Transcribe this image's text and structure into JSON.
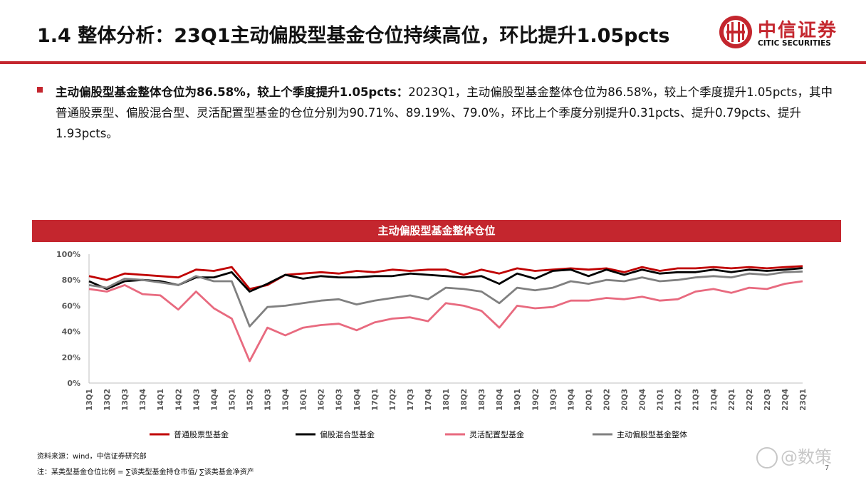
{
  "header": {
    "title": "1.4 整体分析：23Q1主动偏股型基金仓位持续高位，环比提升1.05pcts",
    "logo_cn": "中信证券",
    "logo_en": "CITIC SECURITIES",
    "accent_color": "#c4262e"
  },
  "summary": {
    "bold_text": "主动偏股型基金整体仓位为86.58%，较上个季度提升1.05pcts：",
    "body_text": "2023Q1，主动偏股型基金整体仓位为86.58%，较上个季度提升1.05pcts，其中普通股票型、偏股混合型、灵活配置型基金的仓位分别为90.71%、89.19%、79.0%，环比上个季度分别提升0.31pcts、提升0.79pcts、提升1.93pcts。"
  },
  "chart_header": "主动偏股型基金整体仓位",
  "chart_data": {
    "type": "line",
    "x": [
      "13Q1",
      "13Q2",
      "13Q3",
      "13Q4",
      "14Q1",
      "14Q2",
      "14Q3",
      "14Q4",
      "15Q1",
      "15Q2",
      "15Q3",
      "15Q4",
      "16Q1",
      "16Q2",
      "16Q3",
      "16Q4",
      "17Q1",
      "17Q2",
      "17Q3",
      "17Q4",
      "18Q1",
      "18Q2",
      "18Q3",
      "18Q4",
      "19Q1",
      "19Q2",
      "19Q3",
      "19Q4",
      "20Q1",
      "20Q2",
      "20Q3",
      "20Q4",
      "21Q1",
      "21Q2",
      "21Q3",
      "21Q4",
      "22Q1",
      "22Q2",
      "22Q3",
      "22Q4",
      "23Q1"
    ],
    "x_tick_labels": [
      "13Q1",
      "13Q2",
      "13Q3",
      "13Q4",
      "14Q1",
      "14Q2",
      "14Q3",
      "14Q4",
      "15Q1",
      "15Q2",
      "15Q3",
      "15Q4",
      "16Q1",
      "16Q2",
      "16Q3",
      "16Q4",
      "17Q1",
      "17Q2",
      "17Q3",
      "17Q4",
      "18Q1",
      "18Q2",
      "18Q3",
      "18Q4",
      "19Q1",
      "19Q2",
      "19Q3",
      "19Q4",
      "20Q1",
      "20Q2",
      "20Q3",
      "20Q4",
      "21Q1",
      "21Q2",
      "21Q3",
      "21Q4",
      "22Q1",
      "22Q2",
      "22Q3",
      "22Q4",
      "23Q1"
    ],
    "y_tick_labels": [
      "0%",
      "20%",
      "40%",
      "60%",
      "80%",
      "100%"
    ],
    "ylim": [
      0,
      100
    ],
    "series": [
      {
        "name": "普通股票型基金",
        "color": "#c00000",
        "values": [
          83,
          80,
          85,
          84,
          83,
          82,
          88,
          87,
          90,
          73,
          76,
          84,
          85,
          86,
          85,
          87,
          86,
          88,
          87,
          88,
          88,
          84,
          88,
          85,
          89,
          87,
          88,
          89,
          88,
          89,
          86,
          90,
          87,
          89,
          89,
          90,
          89,
          90,
          89,
          90,
          90.71
        ]
      },
      {
        "name": "偏股混合型基金",
        "color": "#000000",
        "values": [
          79,
          73,
          79,
          80,
          79,
          76,
          82,
          82,
          86,
          71,
          77,
          84,
          81,
          83,
          82,
          82,
          83,
          83,
          85,
          84,
          83,
          82,
          83,
          77,
          85,
          81,
          87,
          88,
          83,
          88,
          84,
          88,
          85,
          86,
          86,
          88,
          86,
          88,
          87,
          88,
          89.19
        ]
      },
      {
        "name": "灵活配置型基金",
        "color": "#e86a7f",
        "values": [
          73,
          71,
          76,
          69,
          68,
          57,
          71,
          58,
          50,
          17,
          43,
          37,
          43,
          45,
          46,
          41,
          47,
          50,
          51,
          48,
          62,
          60,
          56,
          43,
          60,
          58,
          59,
          64,
          64,
          66,
          65,
          67,
          64,
          65,
          71,
          73,
          70,
          74,
          73,
          77,
          79.0
        ]
      },
      {
        "name": "主动偏股型基金整体",
        "color": "#808080",
        "values": [
          76,
          74,
          81,
          80,
          78,
          76,
          83,
          79,
          79,
          44,
          59,
          60,
          62,
          64,
          65,
          61,
          64,
          66,
          68,
          65,
          74,
          73,
          71,
          62,
          74,
          72,
          74,
          79,
          77,
          80,
          79,
          82,
          79,
          80,
          82,
          83,
          82,
          85,
          84,
          86,
          86.58
        ]
      }
    ],
    "legend_position": "bottom",
    "grid": false
  },
  "notes": {
    "source": "资料来源：wind，中信证券研究部",
    "formula": "注：某类型基金仓位比例 = ∑该类型基金持仓市值/ ∑该类基金净资产"
  },
  "watermark": "@数策",
  "page_number": "7"
}
